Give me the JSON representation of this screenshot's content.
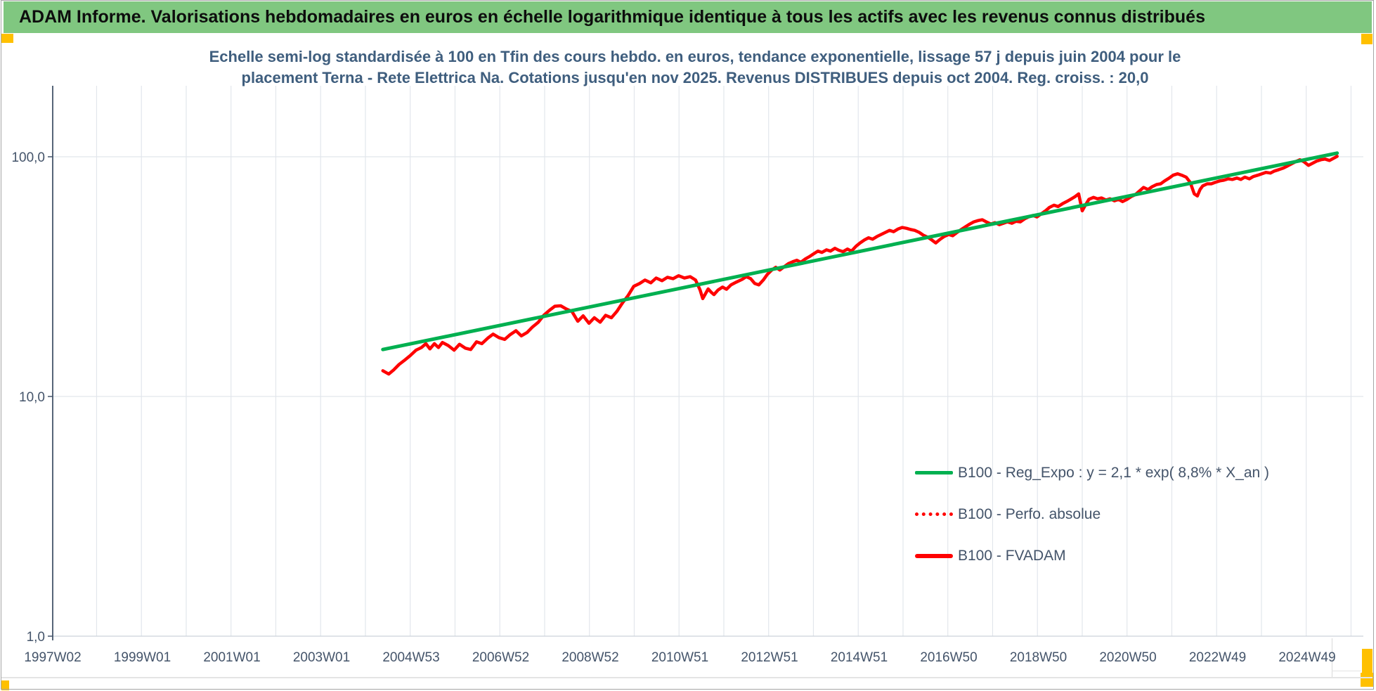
{
  "header": {
    "title": "ADAM Informe. Valorisations hebdomadaires en euros en échelle logarithmique identique à tous les actifs avec les revenus connus distribués"
  },
  "chart_title": {
    "line1": "Echelle semi-log standardisée à 100 en Tfin des cours hebdo. en euros, tendance exponentielle, lissage 57 j depuis juin 2004 pour le",
    "line2": "placement Terna - Rete Elettrica Na. Cotations jusqu'en nov 2025. Revenus DISTRIBUES depuis oct 2004. Reg. croiss. : 20,0"
  },
  "colors": {
    "header_bg": "#80c780",
    "trend_green": "#00b050",
    "series_red": "#ff0000",
    "marker_orange": "#ffc000",
    "grid": "#e2e6ec",
    "axis": "#44546a",
    "title_text": "#3f5e7e"
  },
  "chart_data": {
    "type": "line",
    "title": "Echelle semi-log standardisée à 100 en Tfin des cours hebdo. en euros, tendance exponentielle, lissage 57 j depuis juin 2004 pour le placement Terna - Rete Elettrica Na. Cotations jusqu'en nov 2025. Revenus DISTRIBUES depuis oct 2004. Reg. croiss. : 20,0",
    "xlabel": "",
    "ylabel": "",
    "x_scale": "linear (weekly dates)",
    "y_scale": "log10",
    "x_range_years": [
      1997.02,
      2026.3
    ],
    "ylim": [
      1,
      200
    ],
    "grid": "vertical yearly lines + horizontal decade lines",
    "legend_position": "inside lower-right",
    "x_axis": {
      "ticks": [
        "1997W02",
        "1999W01",
        "2001W01",
        "2003W01",
        "2004W53",
        "2006W52",
        "2008W52",
        "2010W51",
        "2012W51",
        "2014W51",
        "2016W50",
        "2018W50",
        "2020W50",
        "2022W49",
        "2024W49"
      ],
      "tick_interval": "2 years"
    },
    "y_axis": {
      "ticks": [
        {
          "label": "100,0",
          "value": 100
        },
        {
          "label": "10,0",
          "value": 10
        },
        {
          "label": "1,0",
          "value": 1
        }
      ]
    },
    "series": [
      {
        "name": "B100 - Reg_Expo : y = 2,1 * exp( 8,8% *  X_an )",
        "color": "#00b050",
        "style": "solid",
        "stroke_width": 5,
        "points": [
          [
            2004.39,
            15.7
          ],
          [
            2025.69,
            103.6
          ]
        ]
      },
      {
        "name": "B100 - Perfo. absolue",
        "color": "#ff0000",
        "style": "dotted",
        "stroke_width": 4,
        "points_same_as": "B100 - FVADAM",
        "note": "dotted series coincides with B100 - FVADAM and is hidden underneath it"
      },
      {
        "name": "B100 - FVADAM",
        "color": "#ff0000",
        "style": "solid",
        "stroke_width": 4.5,
        "points": [
          [
            2004.39,
            12.8
          ],
          [
            2004.52,
            12.4
          ],
          [
            2004.63,
            12.9
          ],
          [
            2004.75,
            13.6
          ],
          [
            2004.88,
            14.2
          ],
          [
            2005.0,
            14.8
          ],
          [
            2005.13,
            15.6
          ],
          [
            2005.25,
            16.0
          ],
          [
            2005.35,
            16.6
          ],
          [
            2005.44,
            15.8
          ],
          [
            2005.54,
            16.6
          ],
          [
            2005.63,
            16.0
          ],
          [
            2005.72,
            16.8
          ],
          [
            2005.85,
            16.3
          ],
          [
            2005.98,
            15.6
          ],
          [
            2006.1,
            16.5
          ],
          [
            2006.23,
            15.9
          ],
          [
            2006.35,
            15.7
          ],
          [
            2006.48,
            16.9
          ],
          [
            2006.6,
            16.6
          ],
          [
            2006.73,
            17.5
          ],
          [
            2006.85,
            18.2
          ],
          [
            2006.98,
            17.6
          ],
          [
            2007.11,
            17.3
          ],
          [
            2007.23,
            18.1
          ],
          [
            2007.36,
            18.8
          ],
          [
            2007.48,
            17.9
          ],
          [
            2007.61,
            18.5
          ],
          [
            2007.73,
            19.5
          ],
          [
            2007.86,
            20.4
          ],
          [
            2007.98,
            21.8
          ],
          [
            2008.11,
            22.9
          ],
          [
            2008.23,
            23.8
          ],
          [
            2008.36,
            23.9
          ],
          [
            2008.48,
            23.2
          ],
          [
            2008.61,
            22.6
          ],
          [
            2008.74,
            20.6
          ],
          [
            2008.86,
            21.7
          ],
          [
            2008.99,
            20.2
          ],
          [
            2009.11,
            21.3
          ],
          [
            2009.24,
            20.4
          ],
          [
            2009.36,
            21.8
          ],
          [
            2009.49,
            21.3
          ],
          [
            2009.61,
            22.6
          ],
          [
            2009.74,
            24.6
          ],
          [
            2009.86,
            26.3
          ],
          [
            2009.99,
            28.8
          ],
          [
            2010.12,
            29.6
          ],
          [
            2010.24,
            30.6
          ],
          [
            2010.37,
            29.8
          ],
          [
            2010.49,
            31.2
          ],
          [
            2010.62,
            30.4
          ],
          [
            2010.74,
            31.4
          ],
          [
            2010.87,
            31.0
          ],
          [
            2010.99,
            31.9
          ],
          [
            2011.12,
            31.2
          ],
          [
            2011.25,
            31.6
          ],
          [
            2011.37,
            30.6
          ],
          [
            2011.47,
            27.8
          ],
          [
            2011.53,
            25.6
          ],
          [
            2011.59,
            26.8
          ],
          [
            2011.65,
            28.1
          ],
          [
            2011.72,
            27.2
          ],
          [
            2011.78,
            26.6
          ],
          [
            2011.87,
            27.8
          ],
          [
            2011.97,
            28.6
          ],
          [
            2012.06,
            28.0
          ],
          [
            2012.16,
            29.2
          ],
          [
            2012.28,
            30.0
          ],
          [
            2012.41,
            30.8
          ],
          [
            2012.5,
            31.6
          ],
          [
            2012.6,
            31.0
          ],
          [
            2012.69,
            29.6
          ],
          [
            2012.78,
            29.2
          ],
          [
            2012.88,
            30.6
          ],
          [
            2012.97,
            32.3
          ],
          [
            2013.07,
            33.7
          ],
          [
            2013.16,
            34.6
          ],
          [
            2013.25,
            33.7
          ],
          [
            2013.35,
            34.8
          ],
          [
            2013.44,
            35.8
          ],
          [
            2013.54,
            36.5
          ],
          [
            2013.63,
            37.0
          ],
          [
            2013.72,
            36.3
          ],
          [
            2013.82,
            37.5
          ],
          [
            2013.91,
            38.3
          ],
          [
            2014.01,
            39.4
          ],
          [
            2014.1,
            40.4
          ],
          [
            2014.19,
            39.9
          ],
          [
            2014.29,
            40.9
          ],
          [
            2014.38,
            40.4
          ],
          [
            2014.48,
            41.5
          ],
          [
            2014.57,
            40.7
          ],
          [
            2014.66,
            40.2
          ],
          [
            2014.76,
            41.2
          ],
          [
            2014.85,
            40.4
          ],
          [
            2014.95,
            42.3
          ],
          [
            2015.04,
            43.7
          ],
          [
            2015.14,
            45.0
          ],
          [
            2015.23,
            45.9
          ],
          [
            2015.32,
            45.3
          ],
          [
            2015.42,
            46.5
          ],
          [
            2015.51,
            47.4
          ],
          [
            2015.61,
            48.4
          ],
          [
            2015.7,
            49.3
          ],
          [
            2015.79,
            48.7
          ],
          [
            2015.89,
            50.0
          ],
          [
            2015.98,
            50.7
          ],
          [
            2016.08,
            50.3
          ],
          [
            2016.17,
            49.7
          ],
          [
            2016.26,
            49.3
          ],
          [
            2016.36,
            48.4
          ],
          [
            2016.45,
            47.1
          ],
          [
            2016.55,
            46.2
          ],
          [
            2016.64,
            45.0
          ],
          [
            2016.73,
            43.7
          ],
          [
            2016.83,
            45.3
          ],
          [
            2016.92,
            46.5
          ],
          [
            2017.02,
            47.4
          ],
          [
            2017.11,
            46.8
          ],
          [
            2017.21,
            48.4
          ],
          [
            2017.3,
            49.7
          ],
          [
            2017.39,
            51.0
          ],
          [
            2017.49,
            52.4
          ],
          [
            2017.58,
            53.5
          ],
          [
            2017.68,
            54.2
          ],
          [
            2017.77,
            54.6
          ],
          [
            2017.86,
            53.5
          ],
          [
            2017.96,
            52.4
          ],
          [
            2018.05,
            53.1
          ],
          [
            2018.15,
            52.1
          ],
          [
            2018.24,
            52.8
          ],
          [
            2018.33,
            53.5
          ],
          [
            2018.43,
            52.8
          ],
          [
            2018.52,
            53.8
          ],
          [
            2018.62,
            53.5
          ],
          [
            2018.71,
            55.0
          ],
          [
            2018.8,
            56.1
          ],
          [
            2018.9,
            56.9
          ],
          [
            2018.99,
            56.1
          ],
          [
            2019.09,
            57.9
          ],
          [
            2019.18,
            59.5
          ],
          [
            2019.27,
            61.5
          ],
          [
            2019.37,
            62.8
          ],
          [
            2019.46,
            62.0
          ],
          [
            2019.56,
            63.7
          ],
          [
            2019.65,
            65.0
          ],
          [
            2019.74,
            66.4
          ],
          [
            2019.84,
            68.2
          ],
          [
            2019.92,
            70.0
          ],
          [
            2020.0,
            59.5
          ],
          [
            2020.07,
            62.8
          ],
          [
            2020.15,
            66.4
          ],
          [
            2020.25,
            67.7
          ],
          [
            2020.34,
            66.8
          ],
          [
            2020.43,
            67.3
          ],
          [
            2020.53,
            66.0
          ],
          [
            2020.62,
            66.8
          ],
          [
            2020.72,
            65.5
          ],
          [
            2020.81,
            66.4
          ],
          [
            2020.9,
            65.0
          ],
          [
            2021.0,
            66.4
          ],
          [
            2021.09,
            68.2
          ],
          [
            2021.19,
            69.6
          ],
          [
            2021.28,
            72.0
          ],
          [
            2021.37,
            74.5
          ],
          [
            2021.47,
            73.0
          ],
          [
            2021.56,
            75.0
          ],
          [
            2021.66,
            76.6
          ],
          [
            2021.75,
            77.1
          ],
          [
            2021.84,
            79.3
          ],
          [
            2021.94,
            81.5
          ],
          [
            2022.03,
            83.8
          ],
          [
            2022.13,
            84.9
          ],
          [
            2022.22,
            83.8
          ],
          [
            2022.32,
            82.2
          ],
          [
            2022.41,
            78.2
          ],
          [
            2022.5,
            70.0
          ],
          [
            2022.57,
            68.6
          ],
          [
            2022.63,
            73.0
          ],
          [
            2022.69,
            75.6
          ],
          [
            2022.79,
            77.1
          ],
          [
            2022.88,
            77.1
          ],
          [
            2022.97,
            78.2
          ],
          [
            2023.07,
            79.3
          ],
          [
            2023.16,
            79.8
          ],
          [
            2023.26,
            80.9
          ],
          [
            2023.35,
            80.4
          ],
          [
            2023.45,
            81.5
          ],
          [
            2023.54,
            80.4
          ],
          [
            2023.63,
            82.2
          ],
          [
            2023.73,
            80.9
          ],
          [
            2023.82,
            82.7
          ],
          [
            2023.92,
            83.8
          ],
          [
            2024.01,
            84.9
          ],
          [
            2024.1,
            86.1
          ],
          [
            2024.2,
            85.5
          ],
          [
            2024.29,
            87.2
          ],
          [
            2024.39,
            88.4
          ],
          [
            2024.48,
            89.6
          ],
          [
            2024.58,
            91.5
          ],
          [
            2024.67,
            93.4
          ],
          [
            2024.76,
            95.3
          ],
          [
            2024.86,
            97.2
          ],
          [
            2024.95,
            95.3
          ],
          [
            2025.05,
            92.1
          ],
          [
            2025.14,
            94.0
          ],
          [
            2025.23,
            95.9
          ],
          [
            2025.33,
            97.2
          ],
          [
            2025.42,
            97.8
          ],
          [
            2025.52,
            96.5
          ],
          [
            2025.61,
            98.5
          ],
          [
            2025.69,
            100.4
          ]
        ]
      }
    ]
  }
}
